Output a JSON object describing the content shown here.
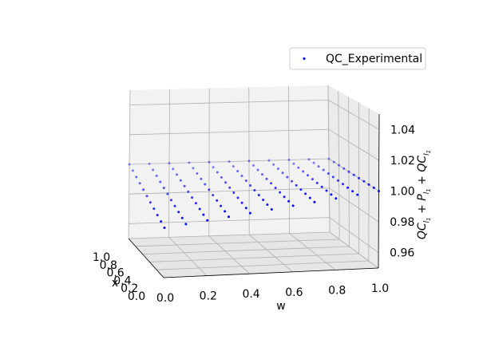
{
  "chart_data": {
    "type": "scatter",
    "projection": "3d",
    "title": "",
    "xlabel": "x",
    "ylabel": "w",
    "zlabel_text": "QC_{l_1} + P_{l_1} + QC_{l_1}",
    "x_ticks": [
      "0.0",
      "0.2",
      "0.4",
      "0.6",
      "0.8",
      "1.0"
    ],
    "w_ticks": [
      "0.0",
      "0.2",
      "0.4",
      "0.6",
      "0.8",
      "1.0"
    ],
    "z_ticks": [
      "0.96",
      "0.98",
      "1.00",
      "1.02",
      "1.04"
    ],
    "xlim": [
      0,
      1
    ],
    "wlim": [
      0,
      1
    ],
    "zlim": [
      0.95,
      1.05
    ],
    "grid": true,
    "legend": {
      "position": "top-right",
      "entries": [
        "QC_Experimental"
      ]
    },
    "series": [
      {
        "name": "QC_Experimental",
        "color": "#0000ff",
        "x_values": [
          0.0,
          0.1,
          0.2,
          0.3,
          0.4,
          0.5,
          0.6,
          0.7,
          0.8,
          0.9,
          1.0
        ],
        "w_values": [
          0.0,
          0.1,
          0.2,
          0.3,
          0.4,
          0.5,
          0.6,
          0.7,
          0.8,
          0.9,
          1.0
        ],
        "z_value": 1.0
      }
    ]
  }
}
